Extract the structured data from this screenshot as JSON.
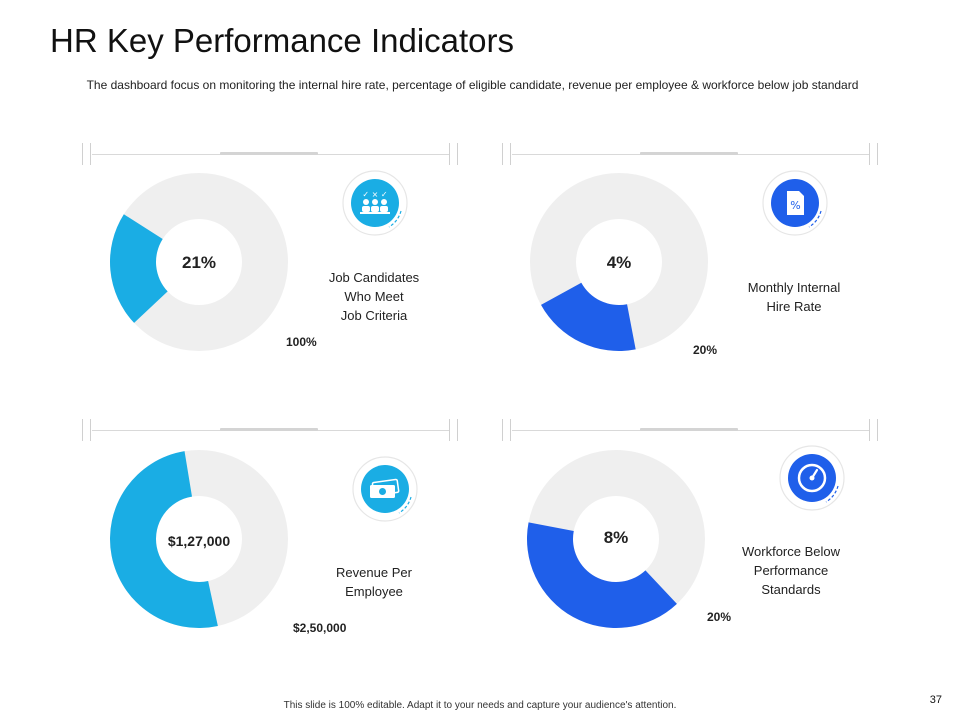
{
  "title": "HR Key Performance Indicators",
  "subtitle": "The dashboard focus on monitoring the internal hire rate, percentage of eligible candidate, revenue per employee & workforce below job standard",
  "footer": "This slide is 100% editable. Adapt it to your needs and capture your audience's attention.",
  "page_number": "37",
  "colors": {
    "light_blue": "#1AADE4",
    "dark_blue": "#1F5FEA",
    "track": "#EFEFEF"
  },
  "kpis": [
    {
      "center": "21%",
      "description": "Job Candidates\nWho Meet\nJob Criteria",
      "max_label": "100%",
      "icon": "candidates-checklist-icon",
      "icon_text": "✓ × ✓",
      "color": "light_blue"
    },
    {
      "center": "4%",
      "description": "Monthly Internal\nHire Rate",
      "max_label": "20%",
      "icon": "percent-document-icon",
      "icon_text": "%",
      "color": "dark_blue"
    },
    {
      "center": "$1,27,000",
      "description": "Revenue Per\nEmployee",
      "max_label": "$2,50,000",
      "icon": "money-icon",
      "icon_text": "",
      "color": "light_blue"
    },
    {
      "center": "8%",
      "description": "Workforce Below\nPerformance\nStandards",
      "max_label": "20%",
      "icon": "gauge-icon",
      "icon_text": "",
      "color": "dark_blue"
    }
  ],
  "chart_data": [
    {
      "type": "pie",
      "title": "Job Candidates Who Meet Job Criteria",
      "value": 21,
      "max": 100,
      "value_label": "21%",
      "max_label": "100%"
    },
    {
      "type": "pie",
      "title": "Monthly Internal Hire Rate",
      "value": 4,
      "max": 20,
      "value_label": "4%",
      "max_label": "20%"
    },
    {
      "type": "pie",
      "title": "Revenue Per Employee",
      "value": 127000,
      "max": 250000,
      "value_label": "$1,27,000",
      "max_label": "$2,50,000"
    },
    {
      "type": "pie",
      "title": "Workforce Below Performance Standards",
      "value": 8,
      "max": 20,
      "value_label": "8%",
      "max_label": "20%"
    }
  ]
}
